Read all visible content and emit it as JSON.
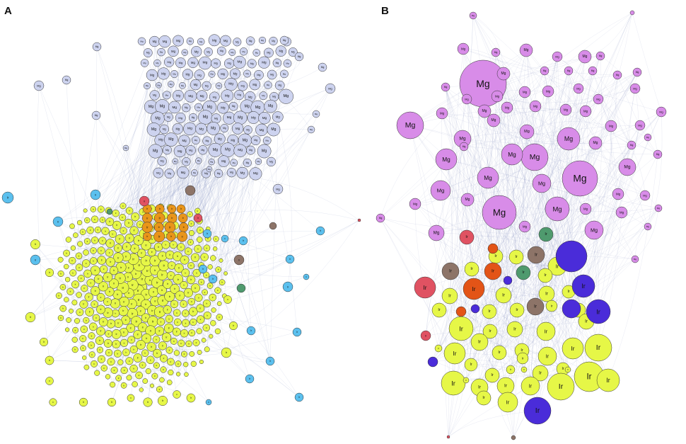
{
  "figure": {
    "panels": [
      {
        "letter": "A"
      },
      {
        "letter": "B"
      }
    ],
    "node_labels": {
      "group_one": "Mg",
      "group_two": "Ir"
    }
  },
  "colors": {
    "mg_panel_a": "#cdd3ef",
    "mg_panel_b": "#d88ce8",
    "ir_yellow": "#e6f747",
    "ir_blue_light": "#5bc0ee",
    "ir_orange": "#e9951a",
    "ir_red_orange": "#e35417",
    "red_pink": "#e05262",
    "brown": "#8d7468",
    "teal": "#4f9a6e",
    "violet": "#4a2cd9",
    "edge": "#5866a8",
    "node_stroke": "#333333"
  }
}
